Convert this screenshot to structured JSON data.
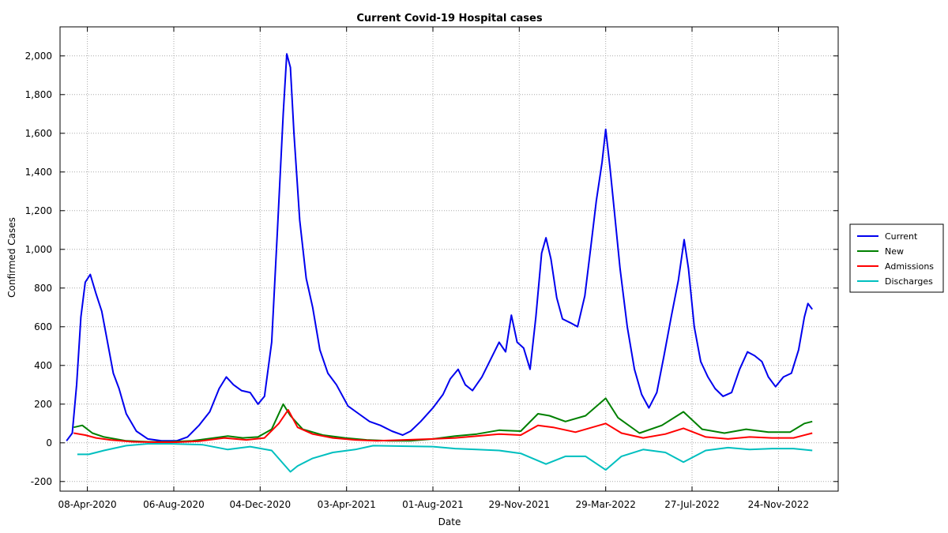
{
  "chart_data": {
    "type": "line",
    "title": "Current Covid-19 Hospital cases",
    "xlabel": "Date",
    "ylabel": "Confirmed Cases",
    "x_range": [
      "2020-03-01",
      "2023-02-15"
    ],
    "ylim": [
      -250,
      2150
    ],
    "grid": true,
    "legend_position": "right",
    "x_ticks": [
      {
        "label": "08-Apr-2020",
        "date": "2020-04-08"
      },
      {
        "label": "06-Aug-2020",
        "date": "2020-08-06"
      },
      {
        "label": "04-Dec-2020",
        "date": "2020-12-04"
      },
      {
        "label": "03-Apr-2021",
        "date": "2021-04-03"
      },
      {
        "label": "01-Aug-2021",
        "date": "2021-08-01"
      },
      {
        "label": "29-Nov-2021",
        "date": "2021-11-29"
      },
      {
        "label": "29-Mar-2022",
        "date": "2022-03-29"
      },
      {
        "label": "27-Jul-2022",
        "date": "2022-07-27"
      },
      {
        "label": "24-Nov-2022",
        "date": "2022-11-24"
      }
    ],
    "y_ticks": [
      {
        "label": "-200",
        "value": -200
      },
      {
        "label": "0",
        "value": 0
      },
      {
        "label": "200",
        "value": 200
      },
      {
        "label": "400",
        "value": 400
      },
      {
        "label": "600",
        "value": 600
      },
      {
        "label": "800",
        "value": 800
      },
      {
        "label": "1,000",
        "value": 1000
      },
      {
        "label": "1,200",
        "value": 1200
      },
      {
        "label": "1,400",
        "value": 1400
      },
      {
        "label": "1,600",
        "value": 1600
      },
      {
        "label": "1,800",
        "value": 1800
      },
      {
        "label": "2,000",
        "value": 2000
      }
    ],
    "series": [
      {
        "name": "Current",
        "color": "#0000ee",
        "points": [
          [
            "2020-03-10",
            10
          ],
          [
            "2020-03-18",
            50
          ],
          [
            "2020-03-24",
            300
          ],
          [
            "2020-03-30",
            650
          ],
          [
            "2020-04-05",
            830
          ],
          [
            "2020-04-12",
            870
          ],
          [
            "2020-04-20",
            770
          ],
          [
            "2020-04-28",
            680
          ],
          [
            "2020-05-05",
            540
          ],
          [
            "2020-05-14",
            360
          ],
          [
            "2020-05-22",
            280
          ],
          [
            "2020-06-01",
            150
          ],
          [
            "2020-06-15",
            60
          ],
          [
            "2020-07-01",
            20
          ],
          [
            "2020-07-20",
            10
          ],
          [
            "2020-08-10",
            10
          ],
          [
            "2020-08-25",
            30
          ],
          [
            "2020-09-10",
            90
          ],
          [
            "2020-09-25",
            160
          ],
          [
            "2020-10-08",
            280
          ],
          [
            "2020-10-18",
            340
          ],
          [
            "2020-10-28",
            300
          ],
          [
            "2020-11-08",
            270
          ],
          [
            "2020-11-20",
            260
          ],
          [
            "2020-12-01",
            200
          ],
          [
            "2020-12-10",
            240
          ],
          [
            "2020-12-20",
            520
          ],
          [
            "2020-12-28",
            1100
          ],
          [
            "2021-01-05",
            1700
          ],
          [
            "2021-01-10",
            2010
          ],
          [
            "2021-01-15",
            1940
          ],
          [
            "2021-01-20",
            1600
          ],
          [
            "2021-01-28",
            1150
          ],
          [
            "2021-02-06",
            850
          ],
          [
            "2021-02-15",
            700
          ],
          [
            "2021-02-25",
            480
          ],
          [
            "2021-03-08",
            360
          ],
          [
            "2021-03-20",
            300
          ],
          [
            "2021-04-05",
            190
          ],
          [
            "2021-04-20",
            150
          ],
          [
            "2021-05-05",
            110
          ],
          [
            "2021-05-20",
            90
          ],
          [
            "2021-06-05",
            60
          ],
          [
            "2021-06-20",
            40
          ],
          [
            "2021-07-01",
            60
          ],
          [
            "2021-07-15",
            110
          ],
          [
            "2021-08-01",
            180
          ],
          [
            "2021-08-15",
            250
          ],
          [
            "2021-08-25",
            330
          ],
          [
            "2021-09-05",
            380
          ],
          [
            "2021-09-15",
            300
          ],
          [
            "2021-09-25",
            270
          ],
          [
            "2021-10-08",
            340
          ],
          [
            "2021-10-20",
            430
          ],
          [
            "2021-11-01",
            520
          ],
          [
            "2021-11-10",
            470
          ],
          [
            "2021-11-18",
            660
          ],
          [
            "2021-11-26",
            520
          ],
          [
            "2021-12-05",
            490
          ],
          [
            "2021-12-14",
            380
          ],
          [
            "2021-12-22",
            650
          ],
          [
            "2021-12-30",
            980
          ],
          [
            "2022-01-05",
            1060
          ],
          [
            "2022-01-12",
            950
          ],
          [
            "2022-01-20",
            750
          ],
          [
            "2022-01-28",
            640
          ],
          [
            "2022-02-08",
            620
          ],
          [
            "2022-02-18",
            600
          ],
          [
            "2022-02-28",
            760
          ],
          [
            "2022-03-08",
            1000
          ],
          [
            "2022-03-16",
            1250
          ],
          [
            "2022-03-24",
            1450
          ],
          [
            "2022-03-29",
            1620
          ],
          [
            "2022-04-04",
            1420
          ],
          [
            "2022-04-10",
            1200
          ],
          [
            "2022-04-18",
            900
          ],
          [
            "2022-04-28",
            600
          ],
          [
            "2022-05-08",
            380
          ],
          [
            "2022-05-18",
            250
          ],
          [
            "2022-05-28",
            180
          ],
          [
            "2022-06-08",
            260
          ],
          [
            "2022-06-18",
            450
          ],
          [
            "2022-06-28",
            650
          ],
          [
            "2022-07-08",
            840
          ],
          [
            "2022-07-16",
            1050
          ],
          [
            "2022-07-22",
            900
          ],
          [
            "2022-07-30",
            600
          ],
          [
            "2022-08-08",
            420
          ],
          [
            "2022-08-18",
            340
          ],
          [
            "2022-08-28",
            280
          ],
          [
            "2022-09-08",
            240
          ],
          [
            "2022-09-20",
            260
          ],
          [
            "2022-10-01",
            380
          ],
          [
            "2022-10-12",
            470
          ],
          [
            "2022-10-22",
            450
          ],
          [
            "2022-11-01",
            420
          ],
          [
            "2022-11-10",
            340
          ],
          [
            "2022-11-20",
            290
          ],
          [
            "2022-12-01",
            340
          ],
          [
            "2022-12-12",
            360
          ],
          [
            "2022-12-22",
            480
          ],
          [
            "2022-12-30",
            650
          ],
          [
            "2023-01-04",
            720
          ],
          [
            "2023-01-10",
            690
          ]
        ]
      },
      {
        "name": "New",
        "color": "#008000",
        "points": [
          [
            "2020-03-20",
            80
          ],
          [
            "2020-04-01",
            90
          ],
          [
            "2020-04-15",
            50
          ],
          [
            "2020-05-01",
            30
          ],
          [
            "2020-06-01",
            10
          ],
          [
            "2020-07-01",
            5
          ],
          [
            "2020-08-01",
            5
          ],
          [
            "2020-09-01",
            10
          ],
          [
            "2020-10-01",
            25
          ],
          [
            "2020-10-20",
            35
          ],
          [
            "2020-11-10",
            25
          ],
          [
            "2020-12-01",
            30
          ],
          [
            "2020-12-20",
            70
          ],
          [
            "2021-01-05",
            200
          ],
          [
            "2021-01-15",
            140
          ],
          [
            "2021-02-01",
            70
          ],
          [
            "2021-03-01",
            40
          ],
          [
            "2021-04-01",
            25
          ],
          [
            "2021-05-01",
            15
          ],
          [
            "2021-06-01",
            10
          ],
          [
            "2021-07-01",
            10
          ],
          [
            "2021-08-01",
            20
          ],
          [
            "2021-09-01",
            35
          ],
          [
            "2021-10-01",
            45
          ],
          [
            "2021-11-01",
            65
          ],
          [
            "2021-12-01",
            60
          ],
          [
            "2021-12-25",
            150
          ],
          [
            "2022-01-10",
            140
          ],
          [
            "2022-02-01",
            110
          ],
          [
            "2022-03-01",
            140
          ],
          [
            "2022-03-29",
            230
          ],
          [
            "2022-04-15",
            130
          ],
          [
            "2022-05-15",
            50
          ],
          [
            "2022-06-15",
            90
          ],
          [
            "2022-07-15",
            160
          ],
          [
            "2022-08-10",
            70
          ],
          [
            "2022-09-10",
            50
          ],
          [
            "2022-10-10",
            70
          ],
          [
            "2022-11-10",
            55
          ],
          [
            "2022-12-10",
            55
          ],
          [
            "2022-12-30",
            100
          ],
          [
            "2023-01-10",
            110
          ]
        ]
      },
      {
        "name": "Admissions",
        "color": "#ff0000",
        "points": [
          [
            "2020-03-20",
            50
          ],
          [
            "2020-04-05",
            40
          ],
          [
            "2020-04-20",
            25
          ],
          [
            "2020-05-10",
            15
          ],
          [
            "2020-06-10",
            5
          ],
          [
            "2020-07-10",
            3
          ],
          [
            "2020-08-10",
            3
          ],
          [
            "2020-09-10",
            8
          ],
          [
            "2020-10-15",
            25
          ],
          [
            "2020-11-15",
            15
          ],
          [
            "2020-12-10",
            25
          ],
          [
            "2020-12-30",
            100
          ],
          [
            "2021-01-12",
            170
          ],
          [
            "2021-01-25",
            80
          ],
          [
            "2021-02-15",
            45
          ],
          [
            "2021-03-15",
            25
          ],
          [
            "2021-04-15",
            15
          ],
          [
            "2021-05-15",
            10
          ],
          [
            "2021-08-01",
            20
          ],
          [
            "2021-09-01",
            25
          ],
          [
            "2021-10-01",
            35
          ],
          [
            "2021-11-01",
            45
          ],
          [
            "2021-12-01",
            40
          ],
          [
            "2021-12-25",
            90
          ],
          [
            "2022-01-15",
            80
          ],
          [
            "2022-02-15",
            55
          ],
          [
            "2022-03-29",
            100
          ],
          [
            "2022-04-20",
            50
          ],
          [
            "2022-05-20",
            25
          ],
          [
            "2022-06-20",
            45
          ],
          [
            "2022-07-15",
            75
          ],
          [
            "2022-08-15",
            30
          ],
          [
            "2022-09-15",
            20
          ],
          [
            "2022-10-15",
            30
          ],
          [
            "2022-11-15",
            25
          ],
          [
            "2022-12-15",
            25
          ],
          [
            "2023-01-10",
            50
          ]
        ]
      },
      {
        "name": "Discharges",
        "color": "#00bfbf",
        "points": [
          [
            "2020-03-25",
            -60
          ],
          [
            "2020-04-10",
            -60
          ],
          [
            "2020-05-01",
            -40
          ],
          [
            "2020-06-01",
            -15
          ],
          [
            "2020-07-01",
            -5
          ],
          [
            "2020-08-01",
            -5
          ],
          [
            "2020-09-15",
            -10
          ],
          [
            "2020-10-20",
            -35
          ],
          [
            "2020-11-20",
            -20
          ],
          [
            "2020-12-20",
            -40
          ],
          [
            "2021-01-15",
            -150
          ],
          [
            "2021-01-25",
            -120
          ],
          [
            "2021-02-15",
            -80
          ],
          [
            "2021-03-15",
            -50
          ],
          [
            "2021-04-15",
            -35
          ],
          [
            "2021-05-10",
            -15
          ],
          [
            "2021-08-01",
            -20
          ],
          [
            "2021-09-01",
            -30
          ],
          [
            "2021-10-01",
            -35
          ],
          [
            "2021-11-01",
            -40
          ],
          [
            "2021-12-01",
            -55
          ],
          [
            "2022-01-05",
            -110
          ],
          [
            "2022-02-01",
            -70
          ],
          [
            "2022-03-01",
            -70
          ],
          [
            "2022-03-29",
            -140
          ],
          [
            "2022-04-20",
            -70
          ],
          [
            "2022-05-20",
            -35
          ],
          [
            "2022-06-20",
            -50
          ],
          [
            "2022-07-15",
            -100
          ],
          [
            "2022-08-15",
            -40
          ],
          [
            "2022-09-15",
            -25
          ],
          [
            "2022-10-15",
            -35
          ],
          [
            "2022-11-15",
            -30
          ],
          [
            "2022-12-15",
            -30
          ],
          [
            "2023-01-10",
            -40
          ]
        ]
      }
    ]
  }
}
